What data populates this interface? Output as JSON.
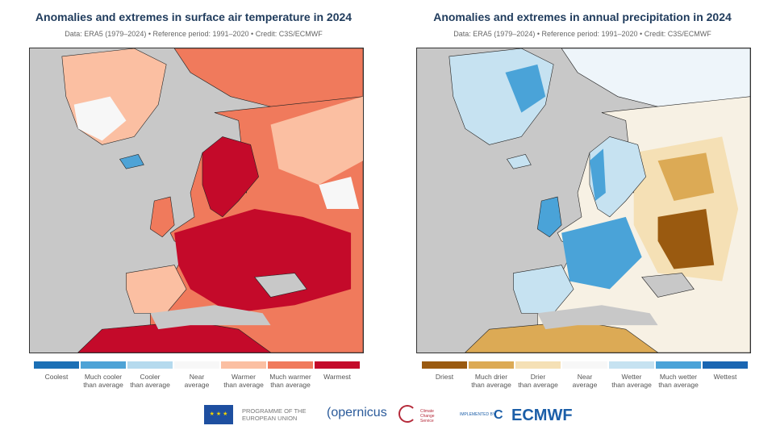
{
  "left": {
    "title": "Anomalies and extremes in surface air temperature in 2024",
    "subtitle": "Data: ERA5 (1979–2024) • Reference period: 1991–2020 • Credit: C3S/ECMWF",
    "legend": [
      {
        "l1": "Coolest",
        "l2": "",
        "color": "#1b6fb5"
      },
      {
        "l1": "Much cooler",
        "l2": "than average",
        "color": "#4ea3d6"
      },
      {
        "l1": "Cooler",
        "l2": "than average",
        "color": "#b5daee"
      },
      {
        "l1": "Near",
        "l2": "average",
        "color": "#f7f7f7"
      },
      {
        "l1": "Warmer",
        "l2": "than average",
        "color": "#fbbfa2"
      },
      {
        "l1": "Much warmer",
        "l2": "than average",
        "color": "#f07a5c"
      },
      {
        "l1": "Warmest",
        "l2": "",
        "color": "#c40a2a"
      }
    ]
  },
  "right": {
    "title": "Anomalies and extremes in annual precipitation in 2024",
    "subtitle": "Data: ERA5 (1979–2024) • Reference period: 1991–2020 • Credit: C3S/ECMWF",
    "legend": [
      {
        "l1": "Driest",
        "l2": "",
        "color": "#9a5a10"
      },
      {
        "l1": "Much drier",
        "l2": "than average",
        "color": "#dcaa55"
      },
      {
        "l1": "Drier",
        "l2": "than average",
        "color": "#f5e0b5"
      },
      {
        "l1": "Near",
        "l2": "average",
        "color": "#f7f7f7"
      },
      {
        "l1": "Wetter",
        "l2": "than average",
        "color": "#c6e2f1"
      },
      {
        "l1": "Much wetter",
        "l2": "than average",
        "color": "#4aa3d8"
      },
      {
        "l1": "Wettest",
        "l2": "",
        "color": "#1a66b2"
      }
    ]
  },
  "logos": {
    "eu": "PROGRAMME OF THE EUROPEAN UNION",
    "copernicus": "opernicus",
    "c3s": "Climate Change Service",
    "implemented": "IMPLEMENTED BY",
    "ecmwf": "ECMWF"
  }
}
